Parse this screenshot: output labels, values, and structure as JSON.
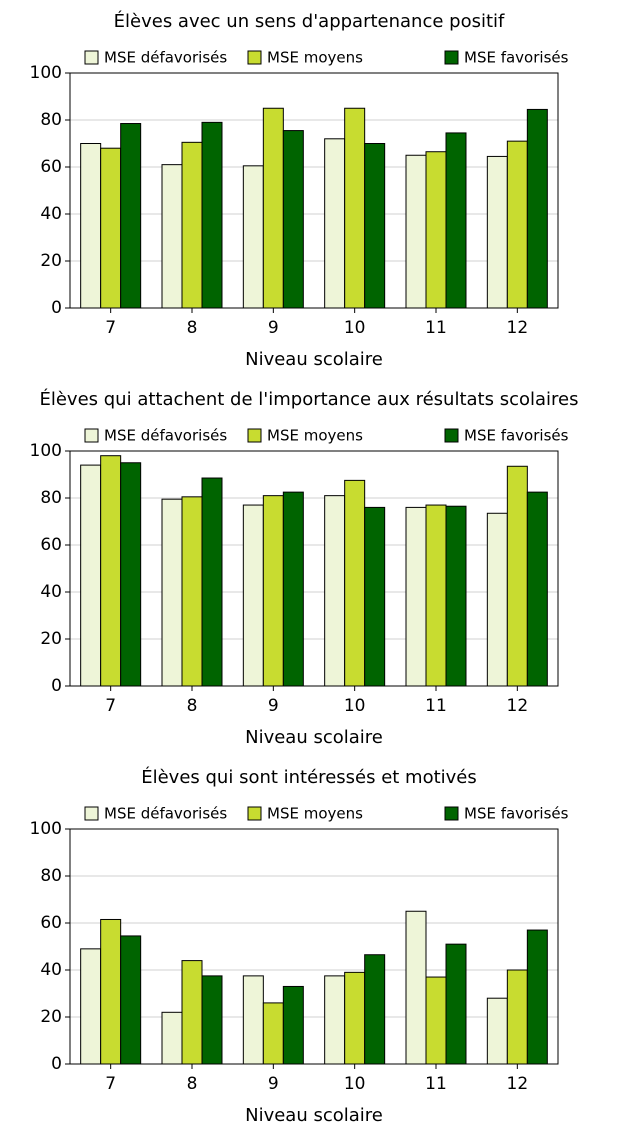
{
  "chart_data": [
    {
      "type": "bar",
      "title": "Élèves avec un sens d'appartenance positif",
      "x_label": "Niveau scolaire",
      "categories": [
        "7",
        "8",
        "9",
        "10",
        "11",
        "12"
      ],
      "series": [
        {
          "name": "MSE défavorisés",
          "color": "#eef5d8",
          "values": [
            70,
            61,
            60.5,
            72,
            65,
            64.5
          ]
        },
        {
          "name": "MSE moyens",
          "color": "#c8dc30",
          "values": [
            68,
            70.5,
            85,
            85,
            66.5,
            71
          ]
        },
        {
          "name": "MSE favorisés",
          "color": "#006400",
          "values": [
            78.5,
            79,
            75.5,
            70,
            74.5,
            84.5
          ]
        }
      ],
      "ylim": [
        0,
        100
      ],
      "yticks": [
        0,
        20,
        40,
        60,
        80,
        100
      ],
      "grid": true,
      "legend": "top"
    },
    {
      "type": "bar",
      "title": "Élèves qui attachent de l'importance aux résultats scolaires",
      "x_label": "Niveau scolaire",
      "categories": [
        "7",
        "8",
        "9",
        "10",
        "11",
        "12"
      ],
      "series": [
        {
          "name": "MSE défavorisés",
          "color": "#eef5d8",
          "values": [
            94,
            79.5,
            77,
            81,
            76,
            73.5
          ]
        },
        {
          "name": "MSE moyens",
          "color": "#c8dc30",
          "values": [
            98,
            80.5,
            81,
            87.5,
            77,
            93.5
          ]
        },
        {
          "name": "MSE favorisés",
          "color": "#006400",
          "values": [
            95,
            88.5,
            82.5,
            76,
            76.5,
            82.5
          ]
        }
      ],
      "ylim": [
        0,
        100
      ],
      "yticks": [
        0,
        20,
        40,
        60,
        80,
        100
      ],
      "grid": true,
      "legend": "top"
    },
    {
      "type": "bar",
      "title": "Élèves qui sont intéressés et motivés",
      "x_label": "Niveau scolaire",
      "categories": [
        "7",
        "8",
        "9",
        "10",
        "11",
        "12"
      ],
      "series": [
        {
          "name": "MSE défavorisés",
          "color": "#eef5d8",
          "values": [
            49,
            22,
            37.5,
            37.5,
            65,
            28
          ]
        },
        {
          "name": "MSE moyens",
          "color": "#c8dc30",
          "values": [
            61.5,
            44,
            26,
            39,
            37,
            40
          ]
        },
        {
          "name": "MSE favorisés",
          "color": "#006400",
          "values": [
            54.5,
            37.5,
            33,
            46.5,
            51,
            57
          ]
        }
      ],
      "ylim": [
        0,
        100
      ],
      "yticks": [
        0,
        20,
        40,
        60,
        80,
        100
      ],
      "grid": true,
      "legend": "top"
    }
  ]
}
